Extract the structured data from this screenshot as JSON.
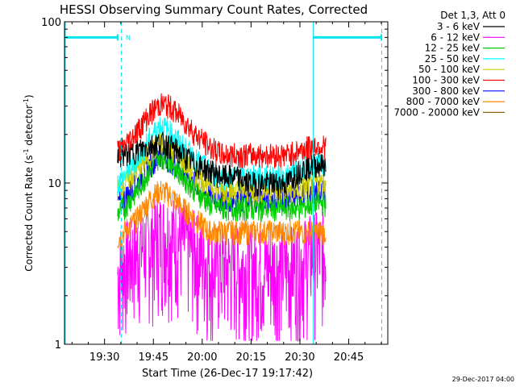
{
  "chart_data": {
    "type": "line",
    "title": "HESSI Observing Summary Count Rates, Corrected",
    "xlabel": "Start Time (26-Dec-17 19:17:42)",
    "ylabel_main": "Corrected Count Rate (s",
    "ylabel_sup1": "-1",
    "ylabel_mid": " detector",
    "ylabel_sup2": "-1",
    "ylabel_end": ")",
    "y_scale": "log",
    "ylim": [
      1,
      100
    ],
    "xlim_minutes": [
      "19:17:42",
      "20:57:00"
    ],
    "x_ticks": [
      "19:30",
      "19:45",
      "20:00",
      "20:15",
      "20:30",
      "20:45"
    ],
    "y_ticks": [
      "1",
      "10",
      "100"
    ],
    "legend_header": "Det 1,3, Att 0",
    "legend_position": "top-right",
    "series": [
      {
        "name": "3 - 6 keV",
        "color": "#000000",
        "times": [
          "19:34",
          "19:36",
          "19:40",
          "19:44",
          "19:47",
          "19:50",
          "19:54",
          "19:58",
          "20:02",
          "20:06",
          "20:10",
          "20:14",
          "20:18",
          "20:22",
          "20:26",
          "20:30",
          "20:34",
          "20:38"
        ],
        "values": [
          15,
          15,
          16,
          17,
          18,
          17,
          15,
          13,
          12,
          11,
          11,
          10,
          10,
          10,
          10,
          12,
          13,
          13
        ]
      },
      {
        "name": "6 - 12 keV",
        "color": "#ff00ff",
        "times": [
          "19:34",
          "19:36",
          "19:40",
          "19:44",
          "19:47",
          "19:50",
          "19:54",
          "19:58",
          "20:02",
          "20:06",
          "20:10",
          "20:14",
          "20:18",
          "20:22",
          "20:26",
          "20:30",
          "20:34",
          "20:38"
        ],
        "values": [
          2.5,
          3,
          3.5,
          4,
          4.5,
          4.5,
          4,
          3.5,
          3,
          2.8,
          2.8,
          2.8,
          2.8,
          2.8,
          2.8,
          3,
          3.5,
          3.5
        ]
      },
      {
        "name": "12 - 25 keV",
        "color": "#00cc00",
        "times": [
          "19:34",
          "19:36",
          "19:40",
          "19:44",
          "19:47",
          "19:50",
          "19:54",
          "19:58",
          "20:02",
          "20:06",
          "20:10",
          "20:14",
          "20:18",
          "20:22",
          "20:26",
          "20:30",
          "20:34",
          "20:38"
        ],
        "values": [
          6.5,
          7,
          9,
          12,
          15,
          14,
          11,
          9,
          7.5,
          7,
          7,
          7,
          7,
          7,
          7,
          7,
          7.5,
          7.5
        ]
      },
      {
        "name": "25 - 50 keV",
        "color": "#00ffff",
        "times": [
          "19:34",
          "19:36",
          "19:40",
          "19:44",
          "19:47",
          "19:50",
          "19:54",
          "19:58",
          "20:02",
          "20:06",
          "20:10",
          "20:14",
          "20:18",
          "20:22",
          "20:26",
          "20:30",
          "20:34",
          "20:38"
        ],
        "values": [
          10,
          11,
          14,
          19,
          23,
          21,
          17,
          14,
          12,
          11,
          11,
          11,
          11,
          11,
          11,
          12,
          13,
          13
        ]
      },
      {
        "name": "50 - 100 keV",
        "color": "#cccc00",
        "times": [
          "19:34",
          "19:36",
          "19:40",
          "19:44",
          "19:47",
          "19:50",
          "19:54",
          "19:58",
          "20:02",
          "20:06",
          "20:10",
          "20:14",
          "20:18",
          "20:22",
          "20:26",
          "20:30",
          "20:34",
          "20:38"
        ],
        "values": [
          9,
          10,
          12,
          15,
          18,
          17,
          14,
          11,
          10,
          9,
          9,
          9,
          9,
          9,
          9,
          9,
          10,
          10
        ]
      },
      {
        "name": "100 - 300 keV",
        "color": "#ff0000",
        "times": [
          "19:34",
          "19:36",
          "19:40",
          "19:44",
          "19:47",
          "19:50",
          "19:54",
          "19:58",
          "20:02",
          "20:06",
          "20:10",
          "20:14",
          "20:18",
          "20:22",
          "20:26",
          "20:30",
          "20:34",
          "20:38"
        ],
        "values": [
          16,
          17,
          21,
          27,
          31,
          30,
          25,
          20,
          17,
          15,
          15,
          15,
          15,
          15,
          15,
          16,
          17,
          17
        ]
      },
      {
        "name": "300 - 800 keV",
        "color": "#0000ff",
        "times": [
          "19:34",
          "19:36",
          "19:40",
          "19:44",
          "19:47",
          "19:50",
          "19:54",
          "19:58",
          "20:02",
          "20:06",
          "20:10",
          "20:14",
          "20:18",
          "20:22",
          "20:26",
          "20:30",
          "20:34",
          "20:38"
        ],
        "values": [
          7.5,
          8,
          10,
          13,
          15,
          14,
          12,
          10,
          8.5,
          8,
          8,
          8,
          8,
          8,
          8,
          8.5,
          9,
          9
        ]
      },
      {
        "name": "800 - 7000 keV",
        "color": "#ff8800",
        "times": [
          "19:34",
          "19:36",
          "19:40",
          "19:44",
          "19:47",
          "19:50",
          "19:54",
          "19:58",
          "20:02",
          "20:06",
          "20:10",
          "20:14",
          "20:18",
          "20:22",
          "20:26",
          "20:30",
          "20:34",
          "20:38"
        ],
        "values": [
          4.5,
          5,
          6,
          8,
          9,
          8.5,
          7,
          6,
          5,
          5,
          5,
          5,
          5,
          5,
          5,
          5,
          5,
          5
        ]
      },
      {
        "name": "7000 - 20000 keV",
        "color": "#8b6914",
        "times": [],
        "values": []
      }
    ],
    "annotations": [
      {
        "text": "N"
      }
    ],
    "footer_date": "29-Dec-2017 04:00"
  }
}
